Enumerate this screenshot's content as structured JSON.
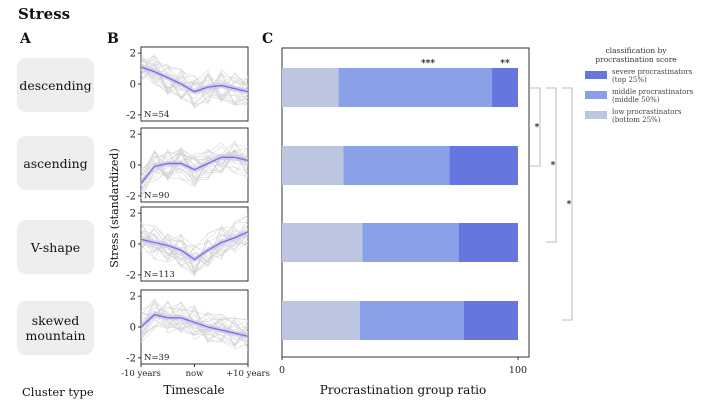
{
  "figure": {
    "title": "Stress",
    "panel_labels": [
      "A",
      "B",
      "C"
    ],
    "cluster_type_label": "Cluster type",
    "clusters": [
      {
        "line1": "descending",
        "line2": ""
      },
      {
        "line1": "ascending",
        "line2": ""
      },
      {
        "line1": "V-shape",
        "line2": ""
      },
      {
        "line1": "skewed",
        "line2": "mountain"
      }
    ]
  },
  "chart_data": [
    {
      "type": "line",
      "id": "timescale-small-multiples",
      "title": "",
      "ylabel": "Stress (standardized)",
      "xlabel": "Timescale",
      "x_tick_labels": [
        "-10 years",
        "now",
        "+10 years"
      ],
      "x_range": [
        -10,
        10
      ],
      "ylim": [
        -2.4,
        2.4
      ],
      "y_ticks": [
        2,
        0,
        -2
      ],
      "x": [
        -10,
        -7.5,
        -5,
        -2.5,
        0,
        2.5,
        5,
        7.5,
        10
      ],
      "series": [
        {
          "name": "descending",
          "n_label": "N=54",
          "mean": [
            1.1,
            0.8,
            0.4,
            0.0,
            -0.5,
            -0.2,
            -0.1,
            -0.3,
            -0.5
          ]
        },
        {
          "name": "ascending",
          "n_label": "N=90",
          "mean": [
            -1.2,
            -0.1,
            0.1,
            0.1,
            -0.3,
            0.1,
            0.5,
            0.5,
            0.3
          ]
        },
        {
          "name": "V-shape",
          "n_label": "N=113",
          "mean": [
            0.3,
            0.1,
            -0.1,
            -0.4,
            -1.0,
            -0.4,
            0.1,
            0.4,
            0.8
          ]
        },
        {
          "name": "skewed mountain",
          "n_label": "N=39",
          "mean": [
            0.0,
            0.8,
            0.6,
            0.6,
            0.3,
            0.0,
            -0.2,
            -0.4,
            -0.6
          ]
        }
      ]
    },
    {
      "type": "bar",
      "id": "procrastination-group-ratio",
      "orientation": "horizontal-stacked",
      "xlabel": "Procrastination group ratio",
      "x_ticks": [
        "0",
        "100"
      ],
      "xlim": [
        0,
        100
      ],
      "categories": [
        "descending",
        "ascending",
        "V-shape",
        "skewed mountain"
      ],
      "series": [
        {
          "name": "low procrastinators",
          "values": [
            24,
            26,
            34,
            33
          ]
        },
        {
          "name": "middle procrastinators",
          "values": [
            65,
            45,
            41,
            44
          ]
        },
        {
          "name": "severe procrastinators",
          "values": [
            11,
            29,
            25,
            23
          ]
        }
      ],
      "annotations": [
        "***",
        "**"
      ],
      "significance_marks": [
        "*",
        "*",
        "*"
      ],
      "legend": {
        "title_line1": "classification by",
        "title_line2": "procrastination score",
        "position": "top-right",
        "items": [
          {
            "line1": "severe procrastinators",
            "line2": "(top 25%)"
          },
          {
            "line1": "middle procrastinators",
            "line2": "(middle 50%)"
          },
          {
            "line1": "low procrastinators",
            "line2": "(bottom 25%)"
          }
        ]
      },
      "colors": {
        "low": "#bcc6e0",
        "middle": "#8aa1ea",
        "severe": "#6576df"
      }
    }
  ]
}
